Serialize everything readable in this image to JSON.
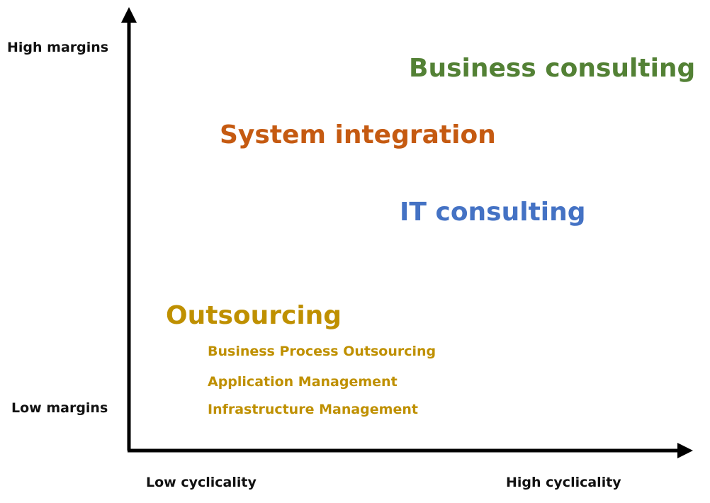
{
  "y_axis": {
    "high_label": "High margins",
    "low_label": "Low margins"
  },
  "x_axis": {
    "low_label": "Low cyclicality",
    "high_label": "High cyclicality"
  },
  "segments": {
    "business_consulting": {
      "label": "Business consulting",
      "color": "#538135"
    },
    "system_integration": {
      "label": "System integration",
      "color": "#C55A11"
    },
    "it_consulting": {
      "label": "IT consulting",
      "color": "#4472C4"
    },
    "outsourcing": {
      "label": "Outsourcing",
      "color": "#BF9000",
      "sub_items": [
        "Business Process Outsourcing",
        "Application Management",
        "Infrastructure Management"
      ]
    }
  },
  "axis_color": "#000000"
}
